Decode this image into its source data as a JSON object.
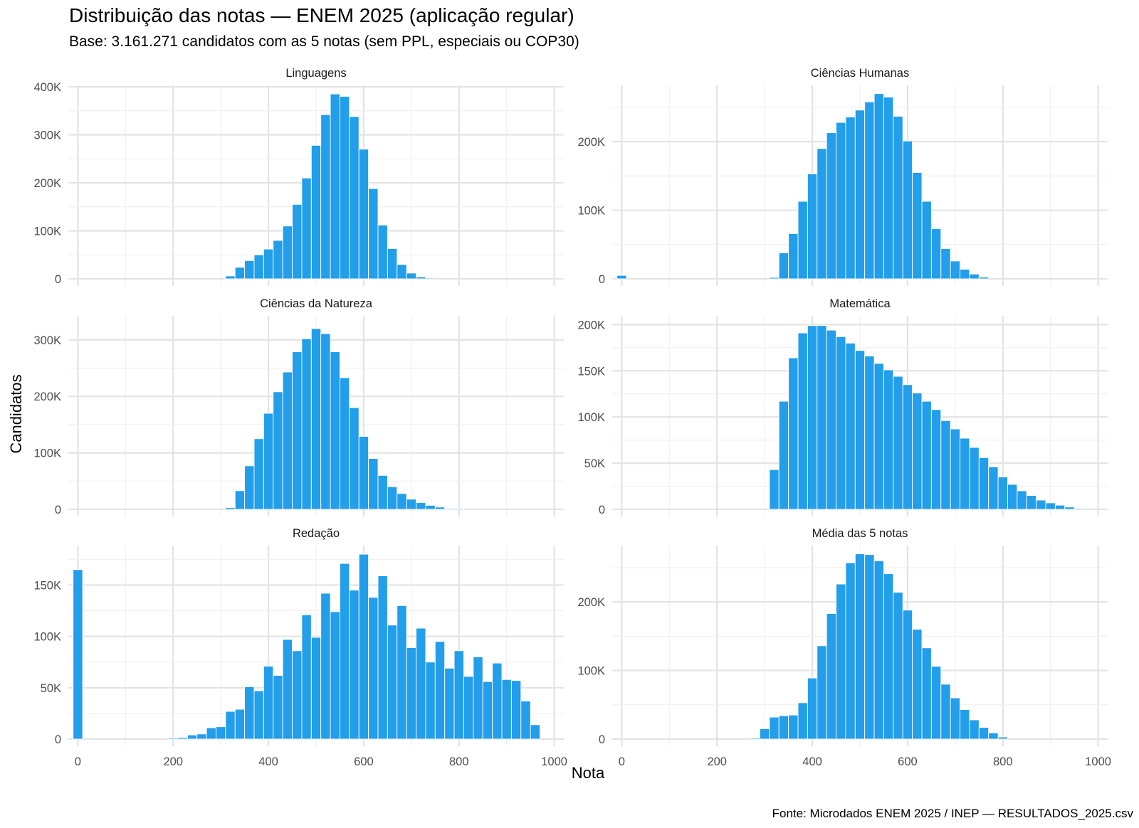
{
  "chart_data": {
    "type": "bar",
    "title": "Distribuição das notas — ENEM 2025 (aplicação regular)",
    "subtitle": "Base: 3.161.271 candidatos com as 5 notas (sem PPL, especiais ou COP30)",
    "caption": "Fonte: Microdados ENEM 2025 / INEP — RESULTADOS_2025.csv",
    "xlabel": "Nota",
    "ylabel": "Candidatos",
    "bar_color": "#229EEA",
    "grid": true,
    "x_ticks": [
      "0",
      "200",
      "400",
      "600",
      "800",
      "1000"
    ],
    "xlim": [
      -20,
      1020
    ],
    "bin_width": 20,
    "panels": [
      {
        "name": "Linguagens",
        "ylim": [
          0,
          400000
        ],
        "y_ticks": [
          "0",
          "100K",
          "200K",
          "300K",
          "400K"
        ],
        "bins": [
          [
            320,
            6000
          ],
          [
            340,
            24000
          ],
          [
            360,
            38000
          ],
          [
            380,
            50000
          ],
          [
            400,
            62000
          ],
          [
            420,
            80000
          ],
          [
            440,
            110000
          ],
          [
            460,
            155000
          ],
          [
            480,
            210000
          ],
          [
            500,
            278000
          ],
          [
            520,
            342000
          ],
          [
            540,
            385000
          ],
          [
            560,
            380000
          ],
          [
            580,
            338000
          ],
          [
            600,
            270000
          ],
          [
            620,
            188000
          ],
          [
            640,
            112000
          ],
          [
            660,
            63000
          ],
          [
            680,
            30000
          ],
          [
            700,
            12000
          ],
          [
            720,
            4000
          ],
          [
            740,
            1500
          ]
        ]
      },
      {
        "name": "Ciências Humanas",
        "ylim": [
          0,
          280000
        ],
        "y_ticks": [
          "0",
          "100K",
          "200K"
        ],
        "bins": [
          [
            0,
            5000
          ],
          [
            320,
            2000
          ],
          [
            340,
            38000
          ],
          [
            360,
            66000
          ],
          [
            380,
            113000
          ],
          [
            400,
            153000
          ],
          [
            420,
            190000
          ],
          [
            440,
            213000
          ],
          [
            460,
            228000
          ],
          [
            480,
            236000
          ],
          [
            500,
            246000
          ],
          [
            520,
            258000
          ],
          [
            540,
            270000
          ],
          [
            560,
            265000
          ],
          [
            580,
            237000
          ],
          [
            600,
            201000
          ],
          [
            620,
            155000
          ],
          [
            640,
            113000
          ],
          [
            660,
            73000
          ],
          [
            680,
            44000
          ],
          [
            700,
            26000
          ],
          [
            720,
            14000
          ],
          [
            740,
            7000
          ],
          [
            760,
            2500
          ]
        ]
      },
      {
        "name": "Ciências da Natureza",
        "ylim": [
          0,
          340000
        ],
        "y_ticks": [
          "0",
          "100K",
          "200K",
          "300K"
        ],
        "bins": [
          [
            320,
            3000
          ],
          [
            340,
            33000
          ],
          [
            360,
            77000
          ],
          [
            380,
            125000
          ],
          [
            400,
            170000
          ],
          [
            420,
            208000
          ],
          [
            440,
            243000
          ],
          [
            460,
            279000
          ],
          [
            480,
            302000
          ],
          [
            500,
            320000
          ],
          [
            520,
            311000
          ],
          [
            540,
            279000
          ],
          [
            560,
            233000
          ],
          [
            580,
            180000
          ],
          [
            600,
            129000
          ],
          [
            620,
            90000
          ],
          [
            640,
            60000
          ],
          [
            660,
            40000
          ],
          [
            680,
            28000
          ],
          [
            700,
            18000
          ],
          [
            720,
            12000
          ],
          [
            740,
            7000
          ],
          [
            760,
            4000
          ],
          [
            780,
            1500
          ],
          [
            800,
            500
          ]
        ]
      },
      {
        "name": "Matemática",
        "ylim": [
          0,
          208000
        ],
        "y_ticks": [
          "0",
          "50K",
          "100K",
          "150K",
          "200K"
        ],
        "bins": [
          [
            320,
            43000
          ],
          [
            340,
            117000
          ],
          [
            360,
            164000
          ],
          [
            380,
            191000
          ],
          [
            400,
            199000
          ],
          [
            420,
            199000
          ],
          [
            440,
            194000
          ],
          [
            460,
            187000
          ],
          [
            480,
            180000
          ],
          [
            500,
            172000
          ],
          [
            520,
            166000
          ],
          [
            540,
            158000
          ],
          [
            560,
            151000
          ],
          [
            580,
            144000
          ],
          [
            600,
            135000
          ],
          [
            620,
            126000
          ],
          [
            640,
            117000
          ],
          [
            660,
            108000
          ],
          [
            680,
            96000
          ],
          [
            700,
            87000
          ],
          [
            720,
            77000
          ],
          [
            740,
            67000
          ],
          [
            760,
            56000
          ],
          [
            780,
            46000
          ],
          [
            800,
            35000
          ],
          [
            820,
            27000
          ],
          [
            840,
            20000
          ],
          [
            860,
            15000
          ],
          [
            880,
            10000
          ],
          [
            900,
            7000
          ],
          [
            920,
            4500
          ],
          [
            940,
            2500
          ],
          [
            960,
            1000
          ]
        ]
      },
      {
        "name": "Redação",
        "ylim": [
          0,
          187000
        ],
        "y_ticks": [
          "0",
          "50K",
          "100K",
          "150K"
        ],
        "bins": [
          [
            0,
            165000
          ],
          [
            200,
            1000
          ],
          [
            220,
            1500
          ],
          [
            240,
            4000
          ],
          [
            260,
            5000
          ],
          [
            280,
            11000
          ],
          [
            300,
            12000
          ],
          [
            320,
            27000
          ],
          [
            340,
            29000
          ],
          [
            360,
            51000
          ],
          [
            380,
            47000
          ],
          [
            400,
            71000
          ],
          [
            420,
            62000
          ],
          [
            440,
            97000
          ],
          [
            460,
            86000
          ],
          [
            480,
            121000
          ],
          [
            500,
            99000
          ],
          [
            520,
            142000
          ],
          [
            540,
            124000
          ],
          [
            560,
            171000
          ],
          [
            580,
            145000
          ],
          [
            600,
            180000
          ],
          [
            620,
            138000
          ],
          [
            640,
            159000
          ],
          [
            660,
            111000
          ],
          [
            680,
            130000
          ],
          [
            700,
            89000
          ],
          [
            720,
            108000
          ],
          [
            740,
            75000
          ],
          [
            760,
            95000
          ],
          [
            780,
            69000
          ],
          [
            800,
            86000
          ],
          [
            820,
            61000
          ],
          [
            840,
            80000
          ],
          [
            860,
            56000
          ],
          [
            880,
            74000
          ],
          [
            900,
            58000
          ],
          [
            920,
            57000
          ],
          [
            940,
            37000
          ],
          [
            960,
            14000
          ]
        ]
      },
      {
        "name": "Média das 5 notas",
        "ylim": [
          0,
          280000
        ],
        "y_ticks": [
          "0",
          "100K",
          "200K"
        ],
        "bins": [
          [
            280,
            1500
          ],
          [
            300,
            15000
          ],
          [
            320,
            32000
          ],
          [
            340,
            34000
          ],
          [
            360,
            35000
          ],
          [
            380,
            53000
          ],
          [
            400,
            89000
          ],
          [
            420,
            136000
          ],
          [
            440,
            183000
          ],
          [
            460,
            226000
          ],
          [
            480,
            257000
          ],
          [
            500,
            270000
          ],
          [
            520,
            269000
          ],
          [
            540,
            260000
          ],
          [
            560,
            241000
          ],
          [
            580,
            214000
          ],
          [
            600,
            188000
          ],
          [
            620,
            160000
          ],
          [
            640,
            133000
          ],
          [
            660,
            106000
          ],
          [
            680,
            80000
          ],
          [
            700,
            60000
          ],
          [
            720,
            43000
          ],
          [
            740,
            28000
          ],
          [
            760,
            17000
          ],
          [
            780,
            9000
          ],
          [
            800,
            3000
          ]
        ]
      }
    ]
  }
}
